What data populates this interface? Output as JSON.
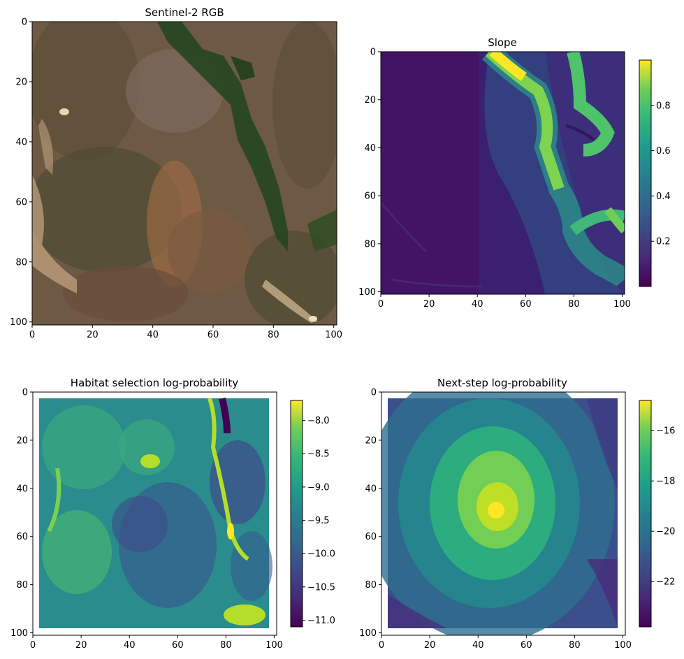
{
  "chart_data": [
    {
      "type": "heatmap",
      "title": "Sentinel-2 RGB",
      "xlim": [
        0,
        101
      ],
      "ylim": [
        101,
        0
      ],
      "xticks": [
        "0",
        "20",
        "40",
        "60",
        "80",
        "100"
      ],
      "yticks": [
        "0",
        "20",
        "40",
        "60",
        "80",
        "100"
      ],
      "colormap": "rgb",
      "colors": {
        "soil": "#7b5e45",
        "vegetation": "#2e4a2a",
        "forest": "#1f4d1c",
        "bare_bright": "#e8d2b0"
      },
      "colorbar": null
    },
    {
      "type": "heatmap",
      "title": "Slope",
      "xlim": [
        0,
        101
      ],
      "ylim": [
        101,
        0
      ],
      "xticks": [
        "0",
        "20",
        "40",
        "60",
        "80",
        "100"
      ],
      "yticks": [
        "0",
        "20",
        "40",
        "60",
        "80",
        "100"
      ],
      "colormap": "viridis",
      "colorbar": {
        "vmin": 0.0,
        "vmax": 1.0,
        "ticks": [
          0.2,
          0.4,
          0.6,
          0.8
        ],
        "tick_labels": [
          "0.2",
          "0.4",
          "0.6",
          "0.8"
        ]
      }
    },
    {
      "type": "heatmap",
      "title": "Habitat selection log-probability",
      "xlim": [
        0,
        101
      ],
      "ylim": [
        101,
        0
      ],
      "xticks": [
        "0",
        "20",
        "40",
        "60",
        "80",
        "100"
      ],
      "yticks": [
        "0",
        "20",
        "40",
        "60",
        "80",
        "100"
      ],
      "colormap": "viridis",
      "colorbar": {
        "vmin": -11.1,
        "vmax": -7.7,
        "ticks": [
          -8.0,
          -8.5,
          -9.0,
          -9.5,
          -10.0,
          -10.5,
          -11.0
        ],
        "tick_labels": [
          "−8.0",
          "−8.5",
          "−9.0",
          "−9.5",
          "−10.0",
          "−10.5",
          "−11.0"
        ]
      }
    },
    {
      "type": "heatmap",
      "title": "Next-step log-probability",
      "xlim": [
        0,
        101
      ],
      "ylim": [
        101,
        0
      ],
      "xticks": [
        "0",
        "20",
        "40",
        "60",
        "80",
        "100"
      ],
      "yticks": [
        "0",
        "20",
        "40",
        "60",
        "80",
        "100"
      ],
      "colormap": "viridis",
      "colorbar": {
        "vmin": -23.8,
        "vmax": -14.8,
        "ticks": [
          -16,
          -18,
          -20,
          -22
        ],
        "tick_labels": [
          "−16",
          "−18",
          "−20",
          "−22"
        ]
      }
    }
  ]
}
